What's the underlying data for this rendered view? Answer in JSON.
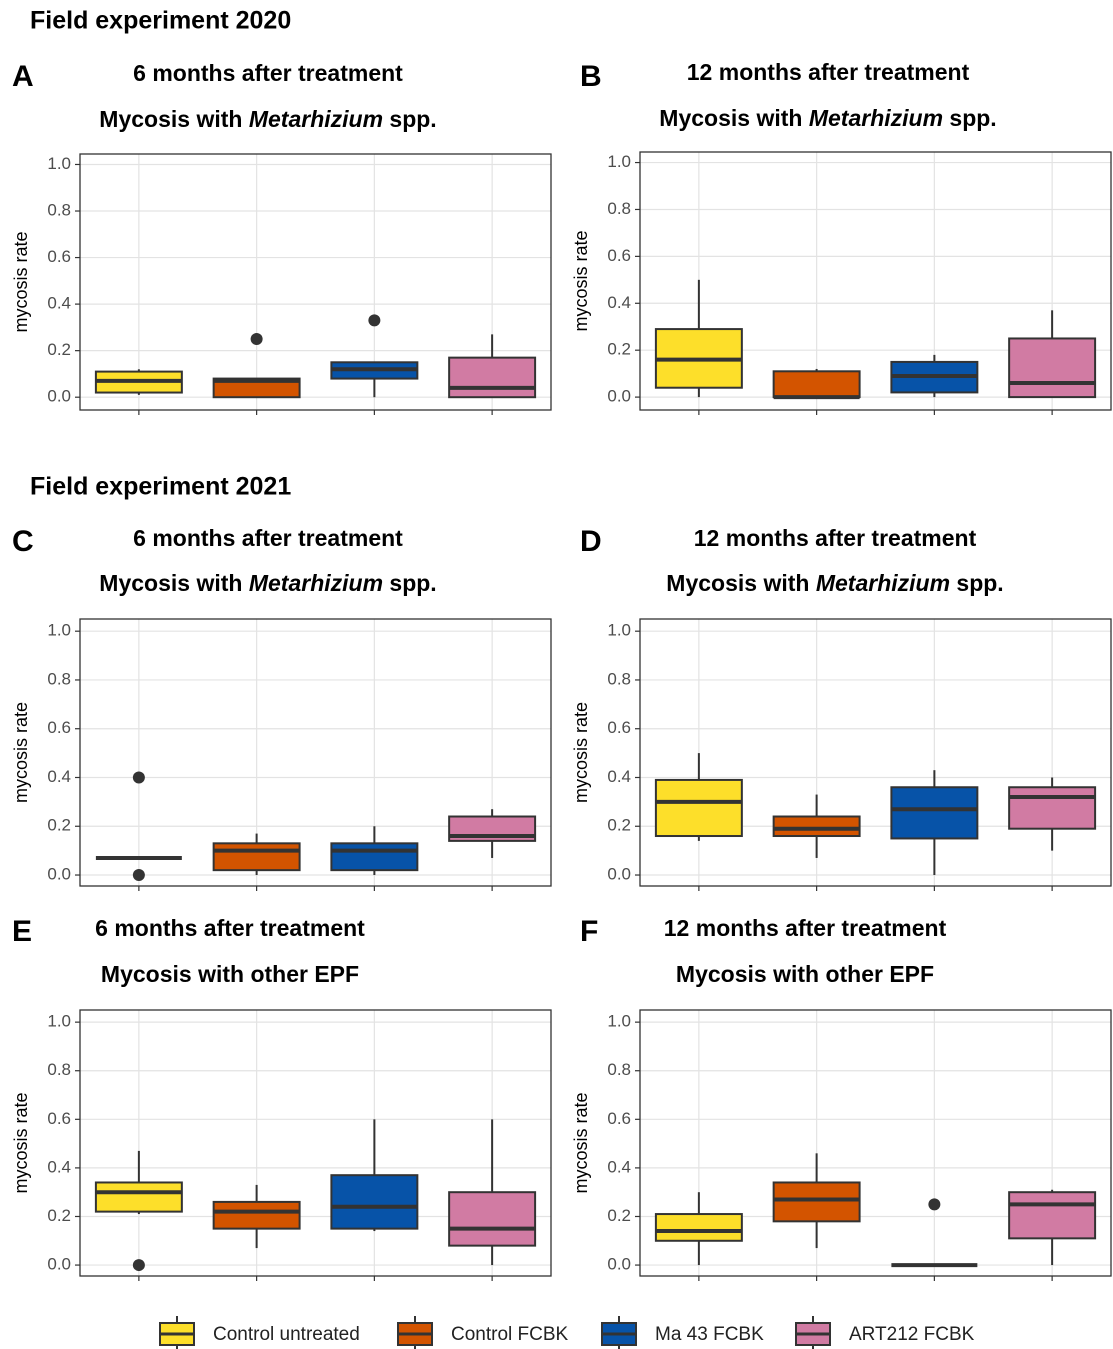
{
  "headings": [
    "Field experiment 2020",
    "Field experiment 2021"
  ],
  "legend": [
    {
      "name": "Control untreated",
      "color": "#fddf2a"
    },
    {
      "name": "Control FCBK",
      "color": "#d35400"
    },
    {
      "name": "Ma 43 FCBK",
      "color": "#0753a8"
    },
    {
      "name": "ART212 FCBK",
      "color": "#d17ba3"
    }
  ],
  "chart_data": [
    {
      "type": "box",
      "label": "A",
      "title": "6 months after treatment",
      "subtitle": [
        {
          "text": "Mycosis with "
        },
        {
          "text": "Metarhizium",
          "italic": true
        },
        {
          "text": " spp."
        }
      ],
      "ylabel": "mycosis rate",
      "ylim": [
        -0.055,
        1.045
      ],
      "grid": true,
      "yticks": [
        {
          "value": 0,
          "label": "0.0"
        },
        {
          "value": 0.2,
          "label": "0.2"
        },
        {
          "value": 0.4,
          "label": "0.4"
        },
        {
          "value": 0.6,
          "label": "0.6"
        },
        {
          "value": 0.8,
          "label": "0.8"
        },
        {
          "value": 1,
          "label": "1.0"
        }
      ],
      "boxes": [
        {
          "min": 0.01,
          "q1": 0.02,
          "median": 0.07,
          "q3": 0.11,
          "max": 0.12,
          "outliers": []
        },
        {
          "min": 0,
          "q1": 0,
          "median": 0.07,
          "q3": 0.08,
          "max": 0.08,
          "outliers": [
            0.25
          ]
        },
        {
          "min": 0,
          "q1": 0.08,
          "median": 0.12,
          "q3": 0.15,
          "max": 0.15,
          "outliers": [
            0.33
          ]
        },
        {
          "min": 0,
          "q1": 0,
          "median": 0.04,
          "q3": 0.17,
          "max": 0.27,
          "outliers": []
        }
      ]
    },
    {
      "type": "box",
      "label": "B",
      "title": "12 months after treatment",
      "subtitle": [
        {
          "text": "Mycosis with "
        },
        {
          "text": "Metarhizium",
          "italic": true
        },
        {
          "text": " spp."
        }
      ],
      "ylabel": "mycosis rate",
      "ylim": [
        -0.055,
        1.045
      ],
      "grid": true,
      "yticks": [
        {
          "value": 0,
          "label": "0.0"
        },
        {
          "value": 0.2,
          "label": "0.2"
        },
        {
          "value": 0.4,
          "label": "0.4"
        },
        {
          "value": 0.6,
          "label": "0.6"
        },
        {
          "value": 0.8,
          "label": "0.8"
        },
        {
          "value": 1,
          "label": "1.0"
        }
      ],
      "boxes": [
        {
          "min": 0,
          "q1": 0.04,
          "median": 0.16,
          "q3": 0.29,
          "max": 0.5,
          "outliers": []
        },
        {
          "min": 0,
          "q1": 0,
          "median": 0,
          "q3": 0.11,
          "max": 0.12,
          "outliers": []
        },
        {
          "min": 0,
          "q1": 0.02,
          "median": 0.09,
          "q3": 0.15,
          "max": 0.18,
          "outliers": []
        },
        {
          "min": 0,
          "q1": 0,
          "median": 0.06,
          "q3": 0.25,
          "max": 0.37,
          "outliers": []
        }
      ]
    },
    {
      "type": "box",
      "label": "C",
      "title": "6 months after treatment",
      "subtitle": [
        {
          "text": "Mycosis with "
        },
        {
          "text": "Metarhizium",
          "italic": true
        },
        {
          "text": " spp."
        }
      ],
      "ylabel": "mycosis rate",
      "ylim": [
        -0.045,
        1.05
      ],
      "grid": true,
      "yticks": [
        {
          "value": 0,
          "label": "0.0"
        },
        {
          "value": 0.2,
          "label": "0.2"
        },
        {
          "value": 0.4,
          "label": "0.4"
        },
        {
          "value": 0.6,
          "label": "0.6"
        },
        {
          "value": 0.8,
          "label": "0.8"
        },
        {
          "value": 1,
          "label": "1.0"
        }
      ],
      "boxes": [
        {
          "min": 0.07,
          "q1": 0.07,
          "median": 0.07,
          "q3": 0.07,
          "max": 0.07,
          "outliers": [
            0.4,
            0
          ]
        },
        {
          "min": 0,
          "q1": 0.02,
          "median": 0.1,
          "q3": 0.13,
          "max": 0.17,
          "outliers": []
        },
        {
          "min": 0,
          "q1": 0.02,
          "median": 0.1,
          "q3": 0.13,
          "max": 0.2,
          "outliers": []
        },
        {
          "min": 0.07,
          "q1": 0.14,
          "median": 0.16,
          "q3": 0.24,
          "max": 0.27,
          "outliers": []
        }
      ]
    },
    {
      "type": "box",
      "label": "D",
      "title": "12 months after treatment",
      "subtitle": [
        {
          "text": "Mycosis with "
        },
        {
          "text": "Metarhizium",
          "italic": true
        },
        {
          "text": " spp."
        }
      ],
      "ylabel": "mycosis rate",
      "ylim": [
        -0.045,
        1.05
      ],
      "grid": true,
      "yticks": [
        {
          "value": 0,
          "label": "0.0"
        },
        {
          "value": 0.2,
          "label": "0.2"
        },
        {
          "value": 0.4,
          "label": "0.4"
        },
        {
          "value": 0.6,
          "label": "0.6"
        },
        {
          "value": 0.8,
          "label": "0.8"
        },
        {
          "value": 1,
          "label": "1.0"
        }
      ],
      "boxes": [
        {
          "min": 0.14,
          "q1": 0.16,
          "median": 0.3,
          "q3": 0.39,
          "max": 0.5,
          "outliers": []
        },
        {
          "min": 0.07,
          "q1": 0.16,
          "median": 0.19,
          "q3": 0.24,
          "max": 0.33,
          "outliers": []
        },
        {
          "min": 0,
          "q1": 0.15,
          "median": 0.27,
          "q3": 0.36,
          "max": 0.43,
          "outliers": []
        },
        {
          "min": 0.1,
          "q1": 0.19,
          "median": 0.32,
          "q3": 0.36,
          "max": 0.4,
          "outliers": []
        }
      ]
    },
    {
      "type": "box",
      "label": "E",
      "title": "6 months after treatment",
      "subtitle": [
        {
          "text": "Mycosis with other EPF"
        }
      ],
      "ylabel": "mycosis rate",
      "ylim": [
        -0.045,
        1.05
      ],
      "grid": true,
      "yticks": [
        {
          "value": 0,
          "label": "0.0"
        },
        {
          "value": 0.2,
          "label": "0.2"
        },
        {
          "value": 0.4,
          "label": "0.4"
        },
        {
          "value": 0.6,
          "label": "0.6"
        },
        {
          "value": 0.8,
          "label": "0.8"
        },
        {
          "value": 1,
          "label": "1.0"
        }
      ],
      "boxes": [
        {
          "min": 0.21,
          "q1": 0.22,
          "median": 0.3,
          "q3": 0.34,
          "max": 0.47,
          "outliers": [
            0
          ]
        },
        {
          "min": 0.07,
          "q1": 0.15,
          "median": 0.22,
          "q3": 0.26,
          "max": 0.33,
          "outliers": []
        },
        {
          "min": 0.14,
          "q1": 0.15,
          "median": 0.24,
          "q3": 0.37,
          "max": 0.6,
          "outliers": []
        },
        {
          "min": 0,
          "q1": 0.08,
          "median": 0.15,
          "q3": 0.3,
          "max": 0.6,
          "outliers": []
        }
      ]
    },
    {
      "type": "box",
      "label": "F",
      "title": "12 months after treatment",
      "subtitle": [
        {
          "text": "Mycosis with other EPF"
        }
      ],
      "ylabel": "mycosis rate",
      "ylim": [
        -0.045,
        1.05
      ],
      "grid": true,
      "yticks": [
        {
          "value": 0,
          "label": "0.0"
        },
        {
          "value": 0.2,
          "label": "0.2"
        },
        {
          "value": 0.4,
          "label": "0.4"
        },
        {
          "value": 0.6,
          "label": "0.6"
        },
        {
          "value": 0.8,
          "label": "0.8"
        },
        {
          "value": 1,
          "label": "1.0"
        }
      ],
      "boxes": [
        {
          "min": 0,
          "q1": 0.1,
          "median": 0.14,
          "q3": 0.21,
          "max": 0.3,
          "outliers": []
        },
        {
          "min": 0.07,
          "q1": 0.18,
          "median": 0.27,
          "q3": 0.34,
          "max": 0.46,
          "outliers": []
        },
        {
          "min": 0,
          "q1": 0,
          "median": 0,
          "q3": 0,
          "max": 0,
          "outliers": [
            0.25
          ]
        },
        {
          "min": 0,
          "q1": 0.11,
          "median": 0.25,
          "q3": 0.3,
          "max": 0.31,
          "outliers": []
        }
      ]
    }
  ]
}
